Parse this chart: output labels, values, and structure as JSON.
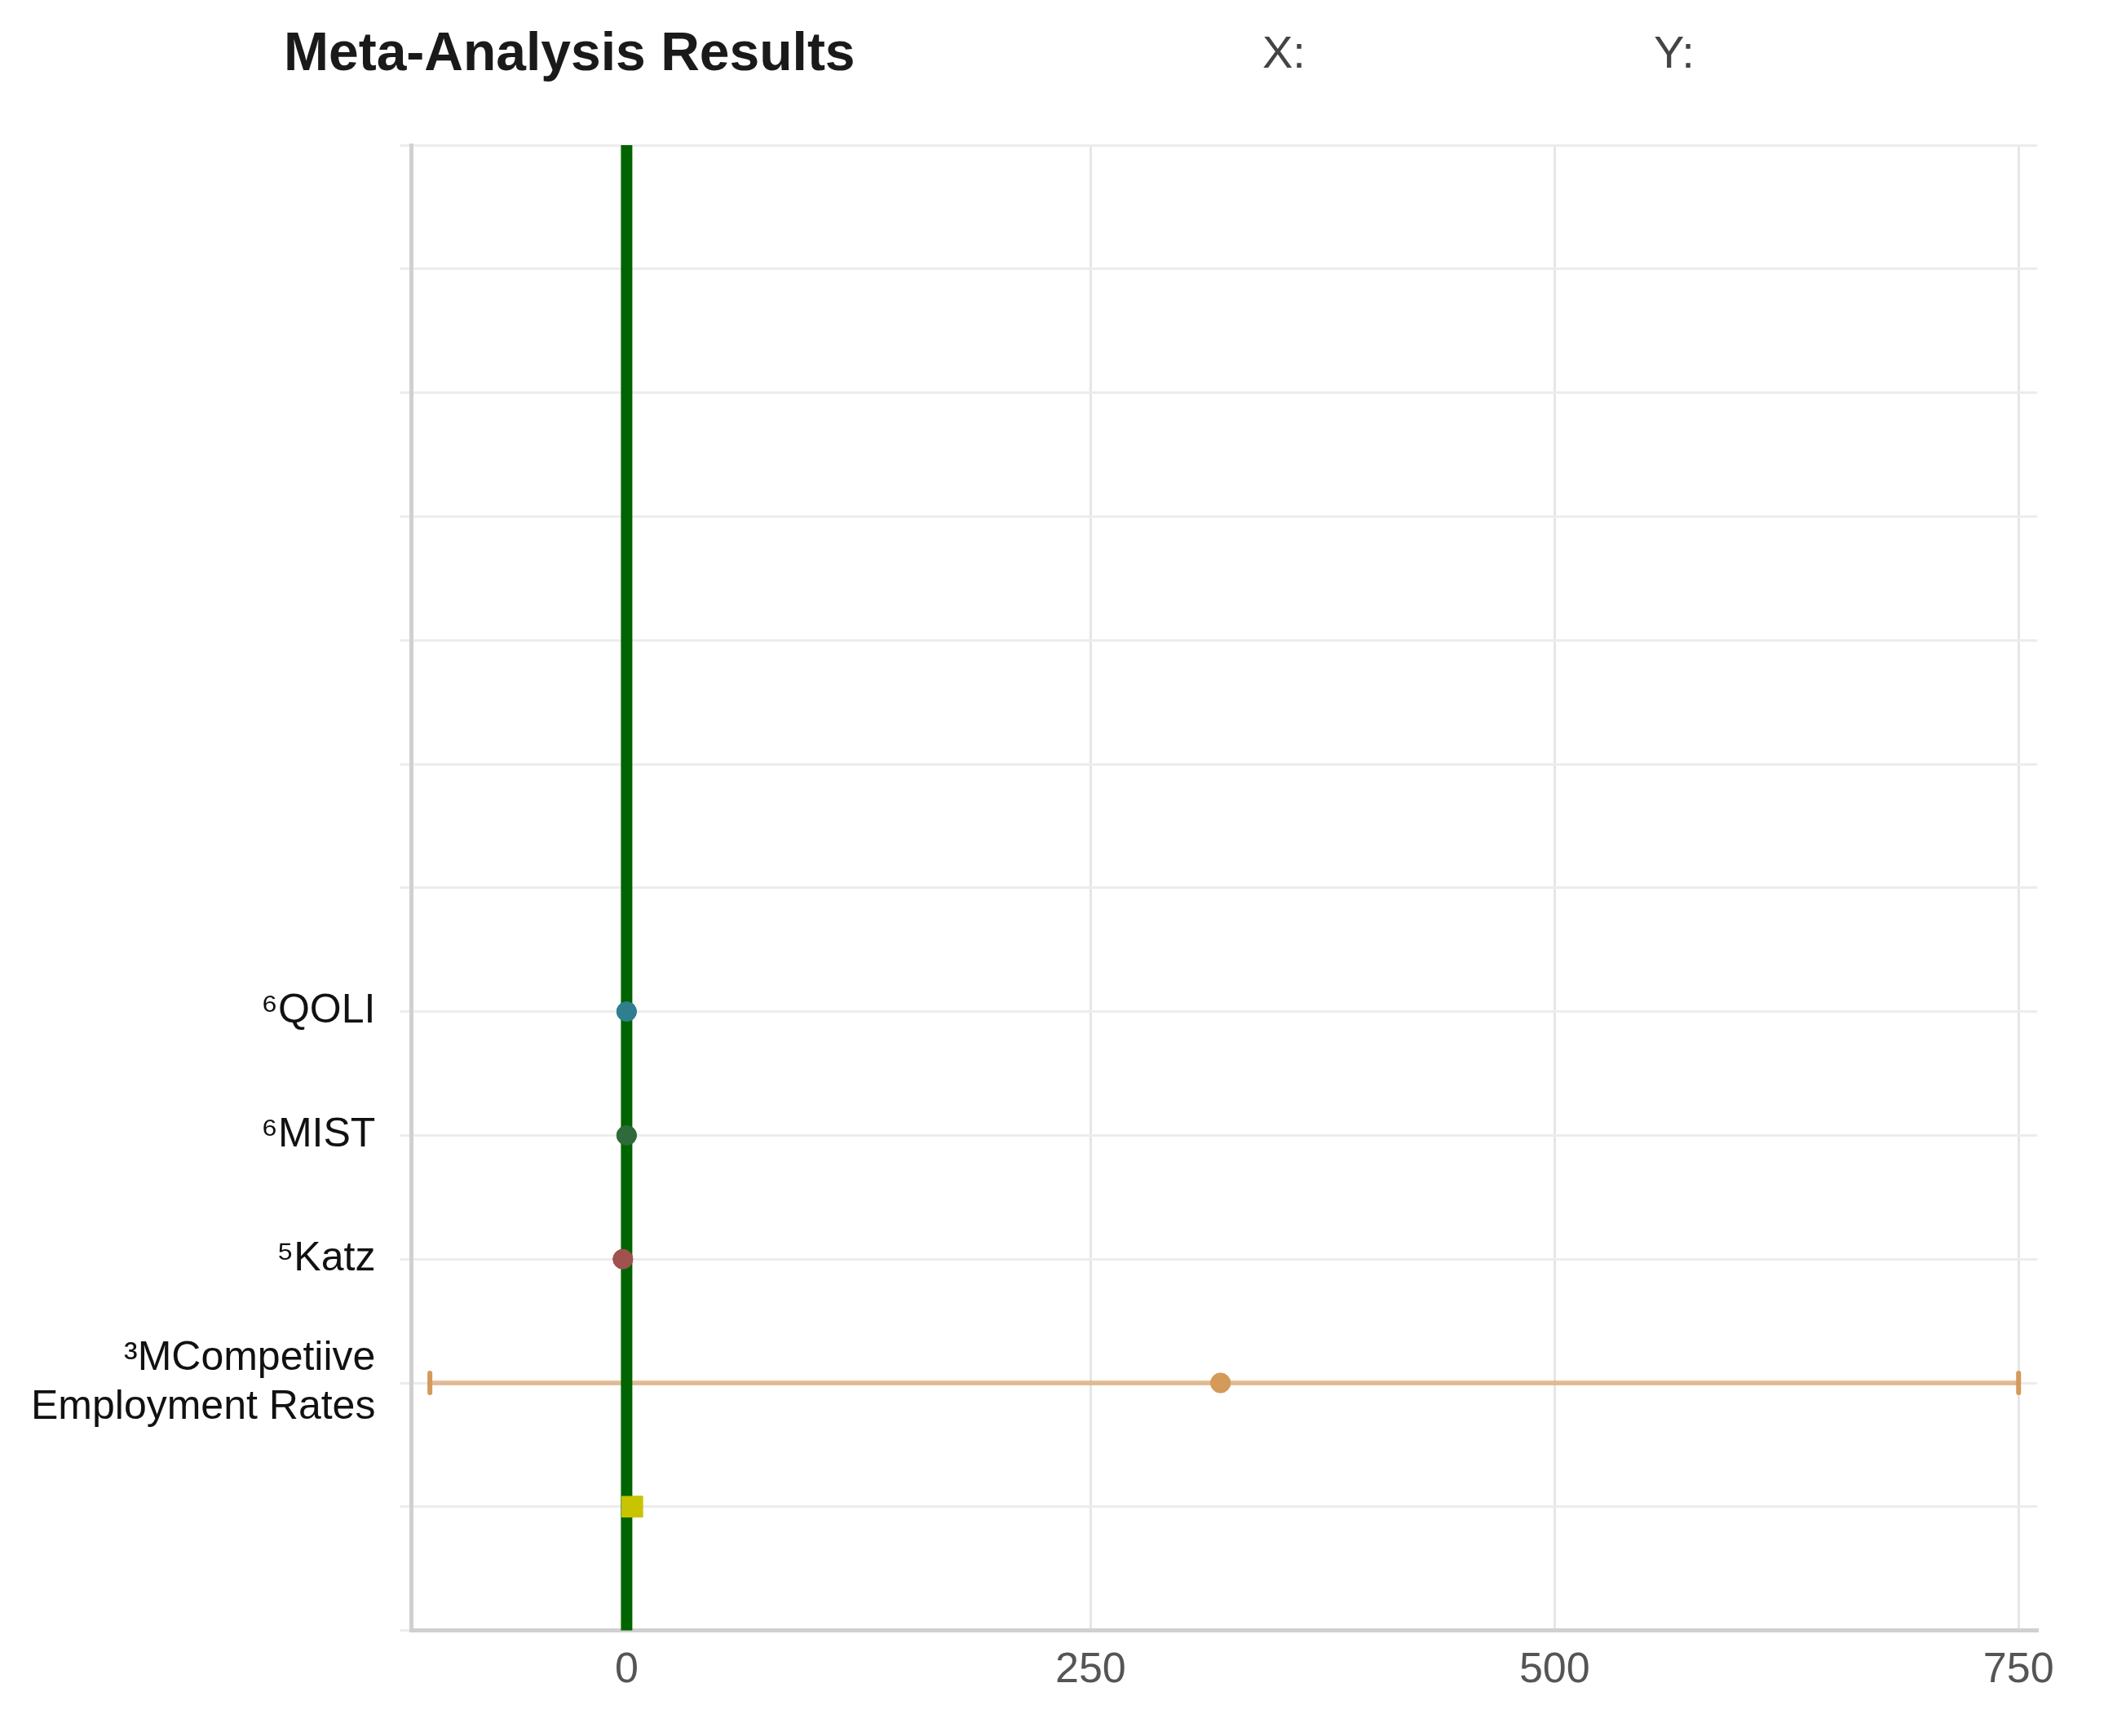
{
  "chart_data": {
    "type": "scatter",
    "orientation": "horizontal",
    "title": "Meta-Analysis Results",
    "annotations": [
      "X:",
      "Y:"
    ],
    "categories": [
      null,
      null,
      null,
      null,
      null,
      null,
      null,
      "⁶QOLI",
      "⁶MIST",
      "⁵Katz",
      "³MCompetiive Employment Rates",
      null,
      null
    ],
    "series": [
      {
        "colors": [
          null,
          null,
          null,
          null,
          null,
          null,
          null,
          "#2f7f8f",
          "#2e6b3a",
          "#a0524f",
          "#d49a5a",
          null,
          null
        ],
        "values": [
          null,
          null,
          null,
          null,
          null,
          null,
          null,
          0,
          0,
          -2,
          320,
          null,
          null
        ],
        "errors": [
          null,
          null,
          null,
          null,
          null,
          null,
          null,
          null,
          null,
          null,
          [
            -106,
            750
          ],
          null,
          null
        ],
        "marker": "circle"
      },
      {
        "color": "#c8c400",
        "values": [
          null,
          null,
          null,
          null,
          null,
          null,
          null,
          null,
          null,
          null,
          null,
          3,
          null
        ],
        "marker": "square"
      }
    ],
    "xlim": [
      -116,
      760
    ],
    "xticks": [
      0,
      250,
      500,
      750
    ],
    "grid": true,
    "legend": false,
    "ref_lines": [
      {
        "axis": "x",
        "value": 0,
        "color": "#006400"
      }
    ]
  }
}
